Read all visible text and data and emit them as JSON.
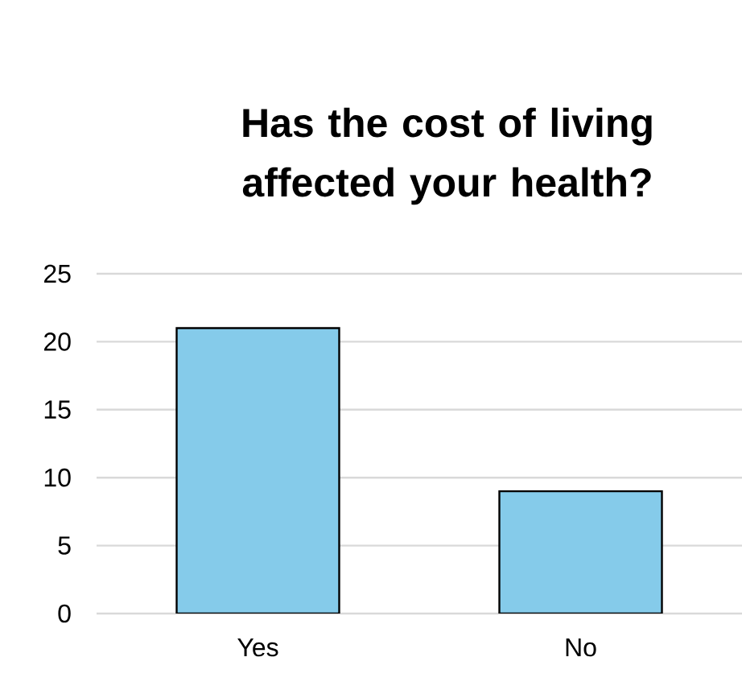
{
  "chart_data": {
    "type": "bar",
    "title": "Has the cost of living affected your health?",
    "categories": [
      "Yes",
      "No"
    ],
    "values": [
      21,
      9
    ],
    "color": "#85cbea",
    "ylim": [
      0,
      25
    ],
    "yticks": [
      0,
      5,
      10,
      15,
      20,
      25
    ],
    "grid": "y"
  }
}
